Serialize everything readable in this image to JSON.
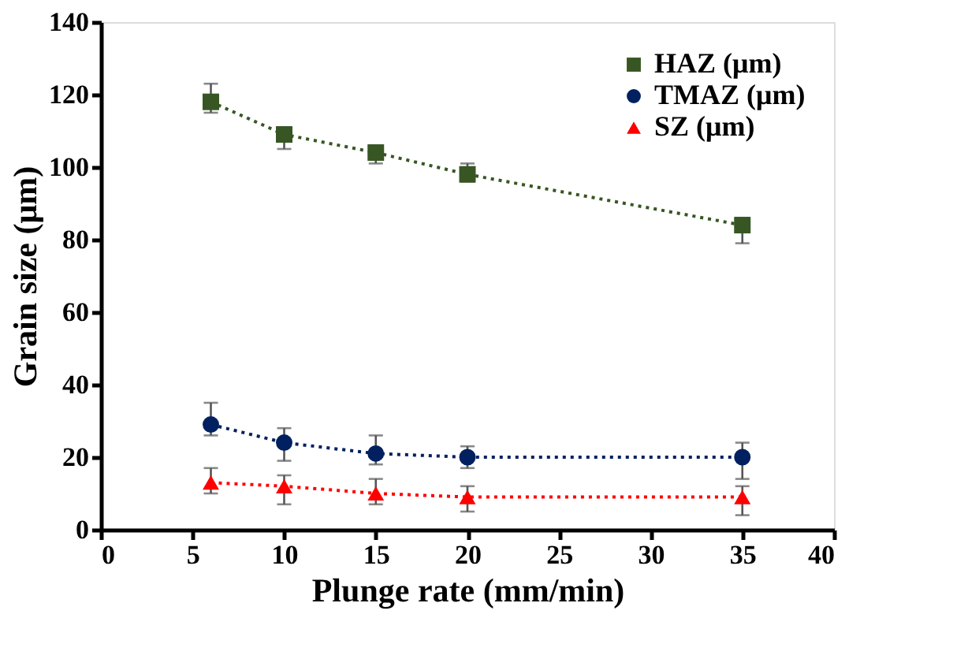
{
  "chart_data": {
    "type": "line",
    "xlabel": "Plunge rate (mm/min)",
    "ylabel": "Grain size (μm)",
    "x": [
      6,
      10,
      15,
      20,
      35
    ],
    "xlim": [
      0,
      40
    ],
    "xticks": [
      0,
      5,
      10,
      15,
      20,
      25,
      30,
      35,
      40
    ],
    "ylim": [
      0,
      140
    ],
    "yticks": [
      0,
      20,
      40,
      60,
      80,
      100,
      120,
      140
    ],
    "grid": false,
    "legend": "top right",
    "line_style": "dotted",
    "series": [
      {
        "name": "HAZ (μm)",
        "color": "#375623",
        "marker": "square",
        "values": [
          118,
          109,
          104,
          98,
          84
        ],
        "errors": [
          [
            115,
            123
          ],
          [
            105,
            111
          ],
          [
            101,
            106
          ],
          [
            96,
            101
          ],
          [
            79,
            86
          ]
        ]
      },
      {
        "name": "TMAZ (μm)",
        "color": "#002060",
        "marker": "circle",
        "values": [
          29,
          24,
          21,
          20,
          20
        ],
        "errors": [
          [
            26,
            35
          ],
          [
            19,
            28
          ],
          [
            18,
            26
          ],
          [
            17,
            23
          ],
          [
            14,
            24
          ]
        ]
      },
      {
        "name": "SZ (μm)",
        "color": "#ff0000",
        "marker": "triangle",
        "values": [
          13,
          12,
          10,
          9,
          9
        ],
        "errors": [
          [
            10,
            17
          ],
          [
            7,
            15
          ],
          [
            7,
            14
          ],
          [
            5,
            12
          ],
          [
            4,
            12
          ]
        ]
      }
    ]
  }
}
